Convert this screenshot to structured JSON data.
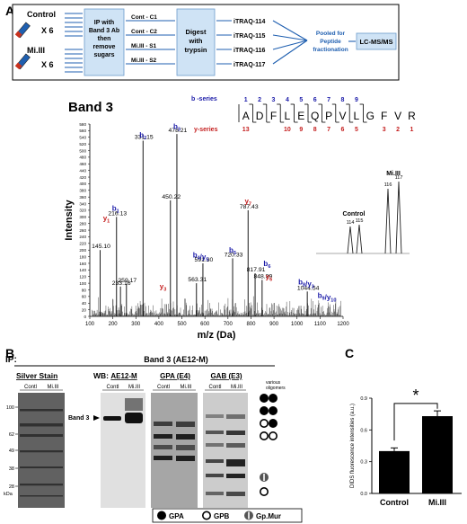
{
  "panel_labels": {
    "a": "A",
    "b": "B",
    "c": "C"
  },
  "workflow": {
    "control_label": "Control",
    "mi3_label": "Mi.III",
    "x6": "X 6",
    "ip_box": [
      "IP with",
      "Band 3 Ab",
      "then",
      "remove",
      "sugars"
    ],
    "samples": [
      "Cont - C1",
      "Cont - C2",
      "Mi.III - S1",
      "Mi.III - S2"
    ],
    "digest_box": [
      "Digest",
      "with",
      "trypsin"
    ],
    "itraq": [
      "iTRAQ-114",
      "iTRAQ-115",
      "iTRAQ-116",
      "iTRAQ-117"
    ],
    "pooled": [
      "Pooled for",
      "Peptide",
      "fractionation"
    ],
    "lcms": "LC-MS/MS"
  },
  "spectrum": {
    "title": "Band 3",
    "xlabel": "m/z (Da)",
    "ylabel": "Intensity",
    "b_series_label": "b -series",
    "y_series_label": "y-series",
    "sequence": [
      "A",
      "D",
      "F",
      "L",
      "E",
      "Q",
      "P",
      "V",
      "L",
      "G",
      "F",
      "V",
      "R"
    ],
    "b_numbers": [
      "1",
      "2",
      "3",
      "4",
      "5",
      "6",
      "7",
      "8",
      "9"
    ],
    "y_numbers": [
      "13",
      "10",
      "9",
      "8",
      "7",
      "6",
      "5",
      "3",
      "2",
      "1"
    ],
    "inset": {
      "control": "Control",
      "mi3": "Mi.III",
      "tags": [
        "114",
        "115",
        "116",
        "117"
      ]
    }
  },
  "chart_data": {
    "type": "bar",
    "title": "Band 3",
    "xlabel": "m/z (Da)",
    "ylabel": "Intensity",
    "xlim": [
      100,
      1200
    ],
    "ylim": [
      0,
      580
    ],
    "x_ticks": [
      "100",
      "200",
      "300",
      "400",
      "500",
      "600",
      "700",
      "800",
      "900",
      "1000",
      "1100",
      "1200"
    ],
    "y_ticks": [
      "0",
      "20",
      "40",
      "60",
      "80",
      "100",
      "120",
      "140",
      "160",
      "180",
      "200",
      "220",
      "240",
      "260",
      "280",
      "300",
      "320",
      "340",
      "360",
      "380",
      "400",
      "420",
      "440",
      "460",
      "480",
      "500",
      "520",
      "540",
      "560",
      "580"
    ],
    "peaks": [
      {
        "x": 145.1,
        "y": 200,
        "label": "145.10"
      },
      {
        "x": 216.13,
        "y": 300,
        "label": "216.13"
      },
      {
        "x": 233.16,
        "y": 90,
        "label": "233.16"
      },
      {
        "x": 259.17,
        "y": 98,
        "label": "259.17"
      },
      {
        "x": 331.15,
        "y": 530,
        "label": "331.15"
      },
      {
        "x": 450.22,
        "y": 350,
        "label": "450.22"
      },
      {
        "x": 478.21,
        "y": 550,
        "label": "478.21"
      },
      {
        "x": 563.31,
        "y": 100,
        "label": "563.31"
      },
      {
        "x": 591.3,
        "y": 160,
        "label": "591.30"
      },
      {
        "x": 720.33,
        "y": 175,
        "label": "720.33"
      },
      {
        "x": 787.43,
        "y": 320,
        "label": "787.43"
      },
      {
        "x": 817.91,
        "y": 130,
        "label": "817.91"
      },
      {
        "x": 848.39,
        "y": 110,
        "label": "848.39"
      },
      {
        "x": 1044.54,
        "y": 75,
        "label": "1044.54"
      }
    ],
    "ion_labels": [
      "b2",
      "b3",
      "b1",
      "y1",
      "y7",
      "b4/y5",
      "b5",
      "b6",
      "y3",
      "y6",
      "b8/y3",
      "b9/y10"
    ]
  },
  "blot": {
    "ip_label": "IP:",
    "ip_ab": "Band 3 (AE12-M)",
    "silver_title": "Silver Stain",
    "wb_label": "WB:",
    "wb_abs": [
      "AE12-M",
      "GPA (E4)",
      "GAB (E3)"
    ],
    "lane_labels": [
      "Contl",
      "Mi.III"
    ],
    "kda_markers": [
      "100",
      "62",
      "49",
      "38",
      "28"
    ],
    "kda_unit": "kDa",
    "band3_label": "Band 3",
    "oligomers_label": [
      "various",
      "oligomers"
    ],
    "legend": [
      "GPA",
      "GPB",
      "Gp.Mur"
    ]
  },
  "chart_data_c": {
    "type": "bar",
    "ylabel": "DIDS fluorescence intensities (a.u.)",
    "categories": [
      "Control",
      "Mi.III"
    ],
    "values": [
      0.4,
      0.73
    ],
    "errors": [
      0.03,
      0.05
    ],
    "ylim": [
      0,
      0.9
    ],
    "y_ticks": [
      "0.0",
      "0.3",
      "0.6",
      "0.9"
    ],
    "significance": "*"
  }
}
